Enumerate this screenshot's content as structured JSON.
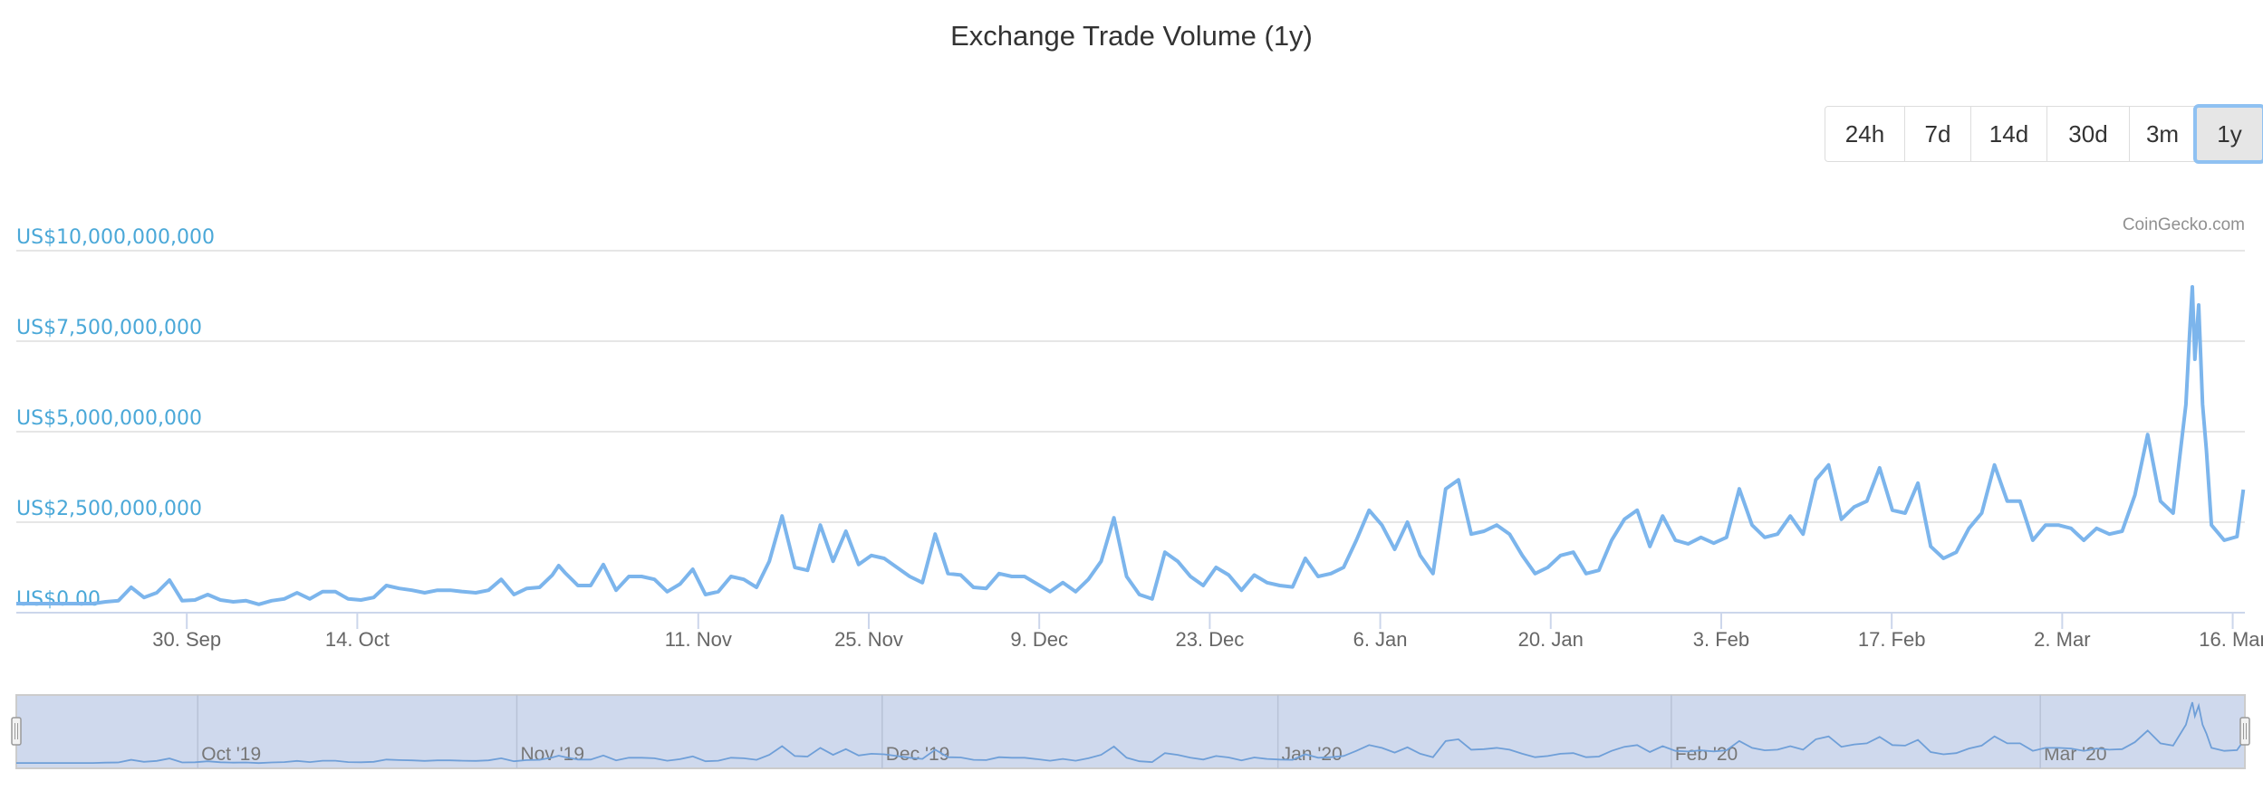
{
  "title": "Exchange Trade Volume (1y)",
  "credit": "CoinGecko.com",
  "range_buttons": [
    {
      "label": "24h",
      "active": false
    },
    {
      "label": "7d",
      "active": false
    },
    {
      "label": "14d",
      "active": false
    },
    {
      "label": "30d",
      "active": false
    },
    {
      "label": "3m",
      "active": false
    },
    {
      "label": "1y",
      "active": true
    }
  ],
  "colors": {
    "line": "#7cb5ec",
    "axis_label": "#4aa8d8",
    "navigator_fill": "#cfd9ed",
    "navigator_line": "#6f9fd8"
  },
  "chart_data": {
    "type": "line",
    "title": "Exchange Trade Volume (1y)",
    "xlabel": "",
    "ylabel": "",
    "y_unit": "US$ billions",
    "ylim": [
      0,
      10
    ],
    "x_unit": "days (axis offset, tick positions below)",
    "xlim": [
      0,
      183
    ],
    "x_step": 1.048,
    "grid": true,
    "y_ticks": [
      {
        "value": 0,
        "label": "US$0.00"
      },
      {
        "value": 2.5,
        "label": "US$2,500,000,000"
      },
      {
        "value": 5,
        "label": "US$5,000,000,000"
      },
      {
        "value": 7.5,
        "label": "US$7,500,000,000"
      },
      {
        "value": 10,
        "label": "US$10,000,000,000"
      }
    ],
    "x_ticks": [
      {
        "value": 14,
        "label": "30. Sep"
      },
      {
        "value": 28,
        "label": "14. Oct"
      },
      {
        "value": 56,
        "label": "11. Nov"
      },
      {
        "value": 70,
        "label": "25. Nov"
      },
      {
        "value": 84,
        "label": "9. Dec"
      },
      {
        "value": 98,
        "label": "23. Dec"
      },
      {
        "value": 112,
        "label": "6. Jan"
      },
      {
        "value": 126,
        "label": "20. Jan"
      },
      {
        "value": 140,
        "label": "3. Feb"
      },
      {
        "value": 154,
        "label": "17. Feb"
      },
      {
        "value": 168,
        "label": "2. Mar"
      },
      {
        "value": 182,
        "label": "16. Mar"
      }
    ],
    "navigator_ticks": [
      {
        "value": 14.9,
        "label": "Oct '19"
      },
      {
        "value": 41.1,
        "label": "Nov '19"
      },
      {
        "value": 71.1,
        "label": "Dec '19"
      },
      {
        "value": 103.6,
        "label": "Jan '20"
      },
      {
        "value": 135.9,
        "label": "Feb '20"
      },
      {
        "value": 166.2,
        "label": "Mar '20"
      }
    ],
    "series": [
      {
        "name": "Exchange Trade Volume",
        "points": [
          [
            0,
            0.25
          ],
          [
            1,
            0.25
          ],
          [
            2,
            0.25
          ],
          [
            3,
            0.25
          ],
          [
            4,
            0.25
          ],
          [
            5,
            0.25
          ],
          [
            6,
            0.25
          ],
          [
            7,
            0.3
          ],
          [
            8,
            0.33
          ],
          [
            9,
            0.7
          ],
          [
            10,
            0.42
          ],
          [
            11,
            0.55
          ],
          [
            12,
            0.9
          ],
          [
            13,
            0.33
          ],
          [
            14,
            0.35
          ],
          [
            15,
            0.5
          ],
          [
            16,
            0.35
          ],
          [
            17,
            0.3
          ],
          [
            18,
            0.33
          ],
          [
            19,
            0.23
          ],
          [
            20,
            0.33
          ],
          [
            21,
            0.38
          ],
          [
            22,
            0.55
          ],
          [
            23,
            0.38
          ],
          [
            24,
            0.58
          ],
          [
            25,
            0.58
          ],
          [
            26,
            0.38
          ],
          [
            27,
            0.35
          ],
          [
            28,
            0.42
          ],
          [
            29,
            0.75
          ],
          [
            30,
            0.67
          ],
          [
            31,
            0.62
          ],
          [
            32,
            0.55
          ],
          [
            33,
            0.62
          ],
          [
            34,
            0.62
          ],
          [
            35,
            0.58
          ],
          [
            36,
            0.55
          ],
          [
            37,
            0.62
          ],
          [
            38,
            0.92
          ],
          [
            39,
            0.5
          ],
          [
            40,
            0.67
          ],
          [
            41,
            0.7
          ],
          [
            42,
            1.04
          ],
          [
            42.5,
            1.3
          ],
          [
            43,
            1.1
          ],
          [
            44,
            0.75
          ],
          [
            45,
            0.75
          ],
          [
            46,
            1.33
          ],
          [
            47,
            0.62
          ],
          [
            48,
            1.0
          ],
          [
            49,
            1.0
          ],
          [
            50,
            0.92
          ],
          [
            51,
            0.58
          ],
          [
            52,
            0.79
          ],
          [
            53,
            1.2
          ],
          [
            54,
            0.5
          ],
          [
            55,
            0.58
          ],
          [
            56,
            1.0
          ],
          [
            57,
            0.92
          ],
          [
            58,
            0.7
          ],
          [
            59,
            1.42
          ],
          [
            60,
            2.67
          ],
          [
            61,
            1.25
          ],
          [
            62,
            1.17
          ],
          [
            63,
            2.42
          ],
          [
            64,
            1.42
          ],
          [
            65,
            2.25
          ],
          [
            66,
            1.33
          ],
          [
            67,
            1.58
          ],
          [
            68,
            1.5
          ],
          [
            69,
            1.25
          ],
          [
            70,
            1.0
          ],
          [
            71,
            0.83
          ],
          [
            72,
            2.17
          ],
          [
            73,
            1.08
          ],
          [
            74,
            1.04
          ],
          [
            75,
            0.7
          ],
          [
            76,
            0.67
          ],
          [
            77,
            1.08
          ],
          [
            78,
            1.0
          ],
          [
            79,
            1.0
          ],
          [
            80,
            0.79
          ],
          [
            81,
            0.58
          ],
          [
            82,
            0.83
          ],
          [
            83,
            0.58
          ],
          [
            84,
            0.92
          ],
          [
            85,
            1.42
          ],
          [
            86,
            2.62
          ],
          [
            87,
            1.0
          ],
          [
            88,
            0.5
          ],
          [
            89,
            0.38
          ],
          [
            90,
            1.67
          ],
          [
            91,
            1.42
          ],
          [
            92,
            1.0
          ],
          [
            93,
            0.75
          ],
          [
            94,
            1.25
          ],
          [
            95,
            1.04
          ],
          [
            96,
            0.62
          ],
          [
            97,
            1.04
          ],
          [
            98,
            0.83
          ],
          [
            99,
            0.75
          ],
          [
            100,
            0.71
          ],
          [
            101,
            1.5
          ],
          [
            102,
            1.0
          ],
          [
            103,
            1.08
          ],
          [
            104,
            1.25
          ],
          [
            105,
            2.0
          ],
          [
            106,
            2.83
          ],
          [
            107,
            2.42
          ],
          [
            108,
            1.75
          ],
          [
            109,
            2.5
          ],
          [
            110,
            1.58
          ],
          [
            111,
            1.08
          ],
          [
            112,
            3.42
          ],
          [
            113,
            3.67
          ],
          [
            114,
            2.17
          ],
          [
            115,
            2.25
          ],
          [
            116,
            2.42
          ],
          [
            117,
            2.17
          ],
          [
            118,
            1.58
          ],
          [
            119,
            1.08
          ],
          [
            120,
            1.25
          ],
          [
            121,
            1.58
          ],
          [
            122,
            1.67
          ],
          [
            123,
            1.08
          ],
          [
            124,
            1.17
          ],
          [
            125,
            2.0
          ],
          [
            126,
            2.58
          ],
          [
            127,
            2.83
          ],
          [
            128,
            1.83
          ],
          [
            129,
            2.67
          ],
          [
            130,
            2.0
          ],
          [
            131,
            1.9
          ],
          [
            132,
            2.08
          ],
          [
            133,
            1.92
          ],
          [
            134,
            2.08
          ],
          [
            135,
            3.42
          ],
          [
            136,
            2.42
          ],
          [
            137,
            2.08
          ],
          [
            138,
            2.17
          ],
          [
            139,
            2.67
          ],
          [
            140,
            2.17
          ],
          [
            141,
            3.67
          ],
          [
            142,
            4.08
          ],
          [
            143,
            2.58
          ],
          [
            144,
            2.92
          ],
          [
            145,
            3.08
          ],
          [
            146,
            4.0
          ],
          [
            147,
            2.83
          ],
          [
            148,
            2.75
          ],
          [
            149,
            3.58
          ],
          [
            150,
            1.83
          ],
          [
            151,
            1.5
          ],
          [
            152,
            1.67
          ],
          [
            153,
            2.33
          ],
          [
            154,
            2.75
          ],
          [
            155,
            4.08
          ],
          [
            156,
            3.08
          ],
          [
            157,
            3.08
          ],
          [
            158,
            2.0
          ],
          [
            159,
            2.42
          ],
          [
            160,
            2.42
          ],
          [
            161,
            2.33
          ],
          [
            162,
            2.0
          ],
          [
            163,
            2.33
          ],
          [
            164,
            2.17
          ],
          [
            165,
            2.25
          ],
          [
            166,
            3.25
          ],
          [
            167,
            4.92
          ],
          [
            168,
            3.08
          ],
          [
            169,
            2.75
          ],
          [
            170,
            5.75
          ],
          [
            170.3,
            7.8
          ],
          [
            170.5,
            9.0
          ],
          [
            170.7,
            7.0
          ],
          [
            171,
            8.5
          ],
          [
            171.3,
            5.75
          ],
          [
            171.6,
            4.5
          ],
          [
            172,
            2.42
          ],
          [
            173,
            2.0
          ],
          [
            174,
            2.1
          ],
          [
            174.5,
            3.4
          ]
        ]
      }
    ]
  }
}
